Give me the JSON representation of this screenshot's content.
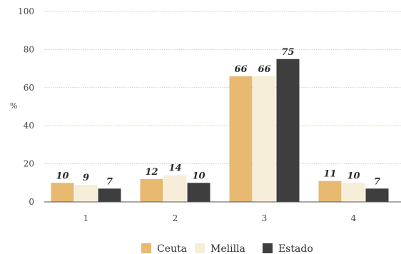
{
  "chart_data": {
    "type": "bar",
    "ylabel": "%",
    "ylim": [
      0,
      100
    ],
    "yticks": [
      0,
      20,
      40,
      60,
      80,
      100
    ],
    "grid": true,
    "legend_position": "bottom",
    "categories": [
      "1",
      "2",
      "3",
      "4"
    ],
    "series": [
      {
        "name": "Ceuta",
        "color": "#e8b970",
        "values": [
          10,
          12,
          66,
          11
        ]
      },
      {
        "name": "Melilla",
        "color": "#f6eed8",
        "values": [
          9,
          14,
          66,
          10
        ]
      },
      {
        "name": "Estado",
        "color": "#3e3e3e",
        "values": [
          7,
          10,
          75,
          7
        ]
      }
    ],
    "grid_color": "#eccb7a",
    "axis_color": "#555555"
  }
}
